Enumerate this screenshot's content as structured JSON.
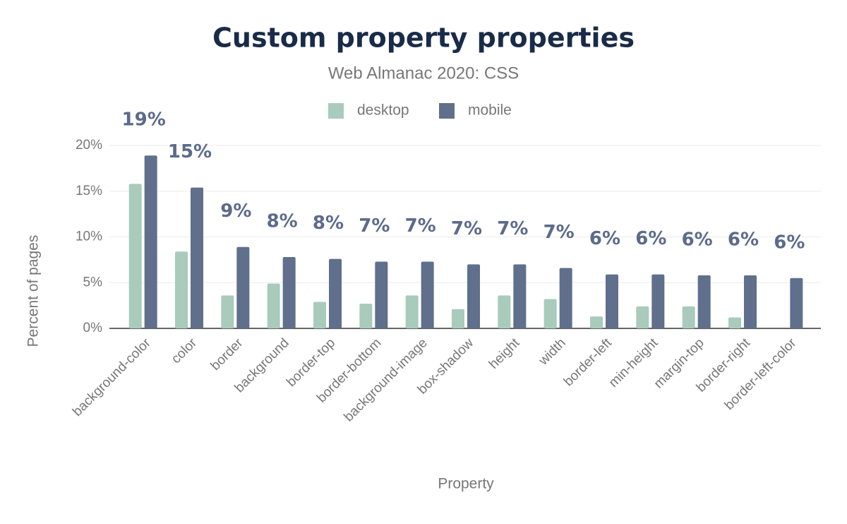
{
  "chart_data": {
    "type": "bar",
    "title": "Custom property properties",
    "subtitle": "Web Almanac 2020: CSS",
    "x_label": "Property",
    "y_label": "Percent of pages",
    "categories": [
      "background-color",
      "color",
      "border",
      "background",
      "border-top",
      "border-bottom",
      "background-image",
      "box-shadow",
      "height",
      "width",
      "border-left",
      "min-height",
      "margin-top",
      "border-right",
      "border-left-color"
    ],
    "series": [
      {
        "name": "desktop",
        "color": "#a8cbbb",
        "values": [
          15.8,
          8.4,
          3.6,
          4.9,
          2.9,
          2.7,
          3.6,
          2.1,
          3.6,
          3.2,
          1.3,
          2.4,
          2.4,
          1.2,
          0
        ]
      },
      {
        "name": "mobile",
        "color": "#5f6f8c",
        "values": [
          18.9,
          15.4,
          8.9,
          7.8,
          7.6,
          7.3,
          7.3,
          7.0,
          7.0,
          6.6,
          5.9,
          5.9,
          5.8,
          5.8,
          5.5
        ],
        "value_labels": [
          "19%",
          "15%",
          "9%",
          "8%",
          "8%",
          "7%",
          "7%",
          "7%",
          "7%",
          "7%",
          "6%",
          "6%",
          "6%",
          "6%",
          "6%"
        ]
      }
    ],
    "ylim": [
      0,
      20
    ],
    "yticks": [
      {
        "value": 0,
        "label": "0%"
      },
      {
        "value": 5,
        "label": "5%"
      },
      {
        "value": 10,
        "label": "10%"
      },
      {
        "value": 15,
        "label": "15%"
      },
      {
        "value": 20,
        "label": "20%"
      }
    ],
    "grid": true
  }
}
